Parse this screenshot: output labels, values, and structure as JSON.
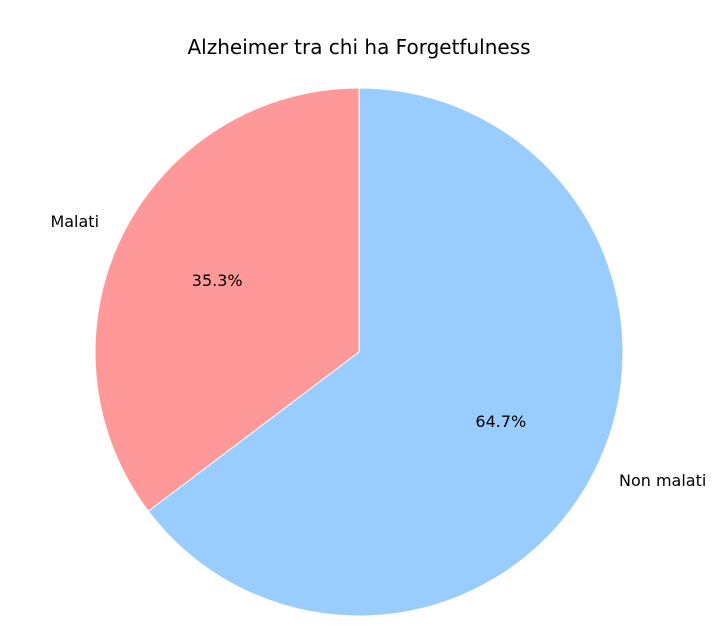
{
  "chart_data": {
    "type": "pie",
    "title": "Alzheimer tra chi ha Forgetfulness",
    "slices": [
      {
        "label": "Malati",
        "value": 35.3,
        "pct_label": "35.3%",
        "color": "#ff9999"
      },
      {
        "label": "Non malati",
        "value": 64.7,
        "pct_label": "64.7%",
        "color": "#99ccff"
      }
    ],
    "start_angle_deg": 90,
    "direction": "counterclockwise",
    "legend": "none"
  }
}
